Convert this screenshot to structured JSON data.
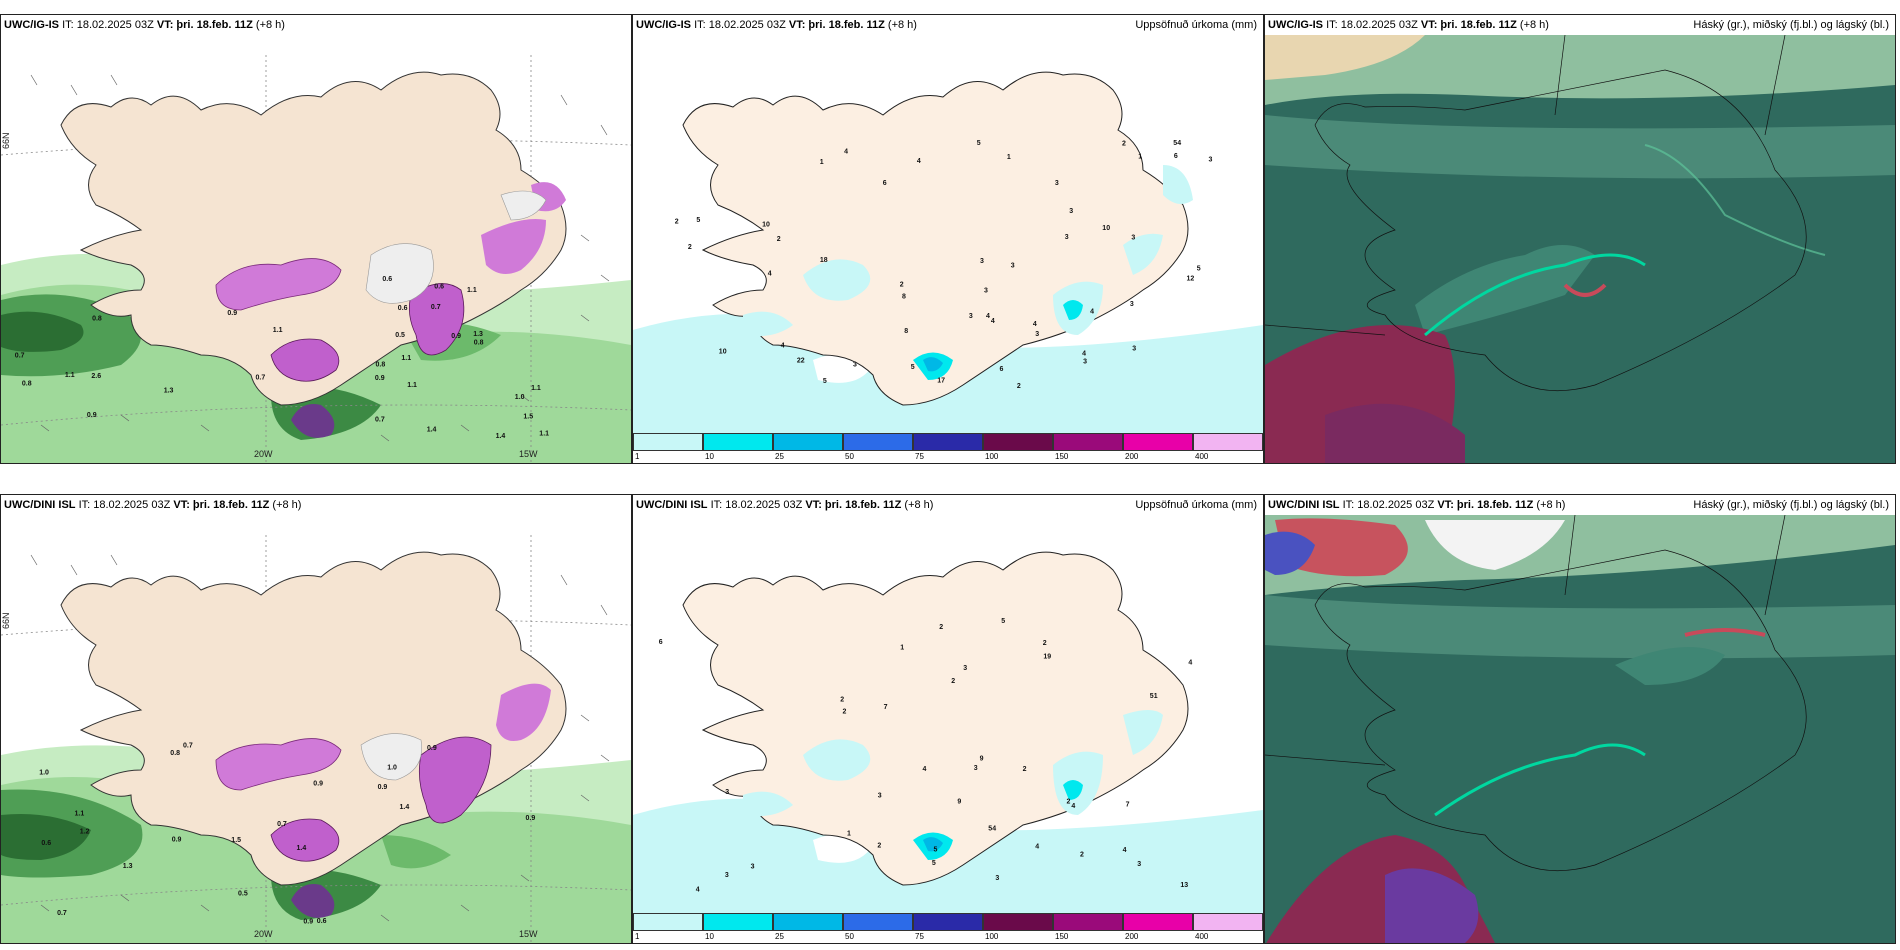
{
  "panels": {
    "p1": {
      "model": "UWC/IG-IS",
      "it": "IT: 18.02.2025 03Z",
      "vt_label": "VT:",
      "vt_value": "þri. 18.feb. 11Z",
      "lead": "(+8 h)",
      "right": ""
    },
    "p2": {
      "model": "UWC/IG-IS",
      "it": "IT: 18.02.2025 03Z",
      "vt_label": "VT:",
      "vt_value": "þri. 18.feb. 11Z",
      "lead": "(+8 h)",
      "right": "Uppsöfnuð úrkoma (mm)"
    },
    "p3": {
      "model": "UWC/IG-IS",
      "it": "IT: 18.02.2025 03Z",
      "vt_label": "VT:",
      "vt_value": "þri. 18.feb. 11Z",
      "lead": "(+8 h)",
      "right": "Háský (gr.), miðský (fj.bl.) og lágský (bl.)"
    },
    "p4": {
      "model": "UWC/DINI ISL",
      "it": "IT: 18.02.2025 03Z",
      "vt_label": "VT:",
      "vt_value": "þri. 18.feb. 11Z",
      "lead": "(+8 h)",
      "right": ""
    },
    "p5": {
      "model": "UWC/DINI ISL",
      "it": "IT: 18.02.2025 03Z",
      "vt_label": "VT:",
      "vt_value": "þri. 18.feb. 11Z",
      "lead": "(+8 h)",
      "right": "Uppsöfnuð úrkoma (mm)"
    },
    "p6": {
      "model": "UWC/DINI ISL",
      "it": "IT: 18.02.2025 03Z",
      "vt_label": "VT:",
      "vt_value": "þri. 18.feb. 11Z",
      "lead": "(+8 h)",
      "right": "Háský (gr.), miðský (fj.bl.) og lágský (bl.)"
    }
  },
  "axis_labels": {
    "lat": "66N",
    "lon20": "20W",
    "lon15": "15W"
  },
  "colorbar": {
    "ticks": [
      "1",
      "10",
      "25",
      "50",
      "75",
      "100",
      "150",
      "200",
      "400"
    ],
    "colors": [
      "#c8f7f7",
      "#00e8ee",
      "#00b8e6",
      "#2c6be8",
      "#2a2aa8",
      "#6a0a4a",
      "#9a0a7a",
      "#e800a8",
      "#f2b4f2"
    ]
  },
  "precip_values_top": [
    "2",
    "1",
    "4",
    "10",
    "10",
    "6",
    "12",
    "18",
    "8",
    "22",
    "10",
    "2",
    "2",
    "4",
    "3",
    "2",
    "2",
    "1",
    "4",
    "3",
    "4",
    "4",
    "5",
    "3",
    "3",
    "3",
    "4",
    "2",
    "17",
    "6",
    "3",
    "54",
    "3",
    "3",
    "4",
    "5",
    "5",
    "5",
    "5",
    "4",
    "4",
    "3",
    "3",
    "3",
    "1",
    "3",
    "3",
    "8",
    "3",
    "6"
  ],
  "precip_values_bottom": [
    "3",
    "7",
    "9",
    "9",
    "1",
    "5",
    "4",
    "2",
    "2",
    "1",
    "13",
    "2",
    "2",
    "2",
    "4",
    "2",
    "2",
    "3",
    "4",
    "4",
    "6",
    "3",
    "5",
    "2",
    "4",
    "19",
    "7",
    "2",
    "51",
    "54",
    "3",
    "3",
    "3",
    "4",
    "3",
    "3",
    "5"
  ],
  "wind_values_top": [
    "0.9",
    "1.1",
    "0.9",
    "1.0",
    "0.7",
    "0.7",
    "1.3",
    "1.1",
    "1.5",
    "1.4",
    "1.1",
    "0.8",
    "0.8",
    "1.1",
    "1.3",
    "1.4",
    "1.1",
    "1.1",
    "0.6",
    "0.9",
    "0.7",
    "0.7",
    "0.5",
    "0.6",
    "0.8",
    "0.9",
    "0.8",
    "0.6",
    "1.1",
    "2.6"
  ],
  "wind_values_bottom": [
    "0.7",
    "1.0",
    "0.9",
    "1.5",
    "1.4",
    "1.2",
    "1.0",
    "0.9",
    "0.6",
    "0.9",
    "0.7",
    "0.7",
    "0.8",
    "0.9",
    "0.9",
    "0.6",
    "0.5",
    "0.9",
    "1.4",
    "1.3",
    "1.1"
  ]
}
